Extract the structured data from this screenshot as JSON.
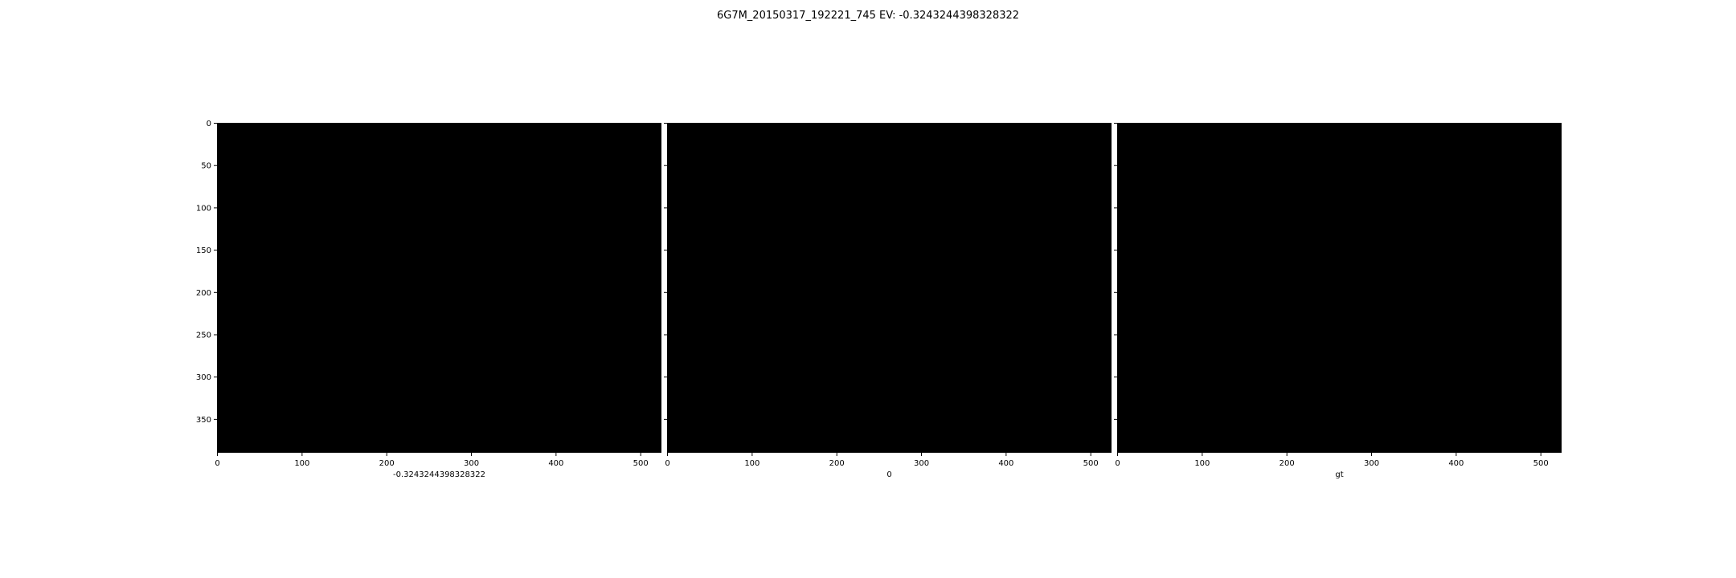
{
  "figure": {
    "title": "6G7M_20150317_192221_745 EV: -0.3243244398328322"
  },
  "chart_data": [
    {
      "type": "heatmap",
      "title": "",
      "xlabel": "-0.3243244398328322",
      "ylabel": "",
      "xlim": [
        -0.5,
        524.5
      ],
      "ylim": [
        389.5,
        -0.5
      ],
      "xticks": [
        0,
        100,
        200,
        300,
        400,
        500
      ],
      "yticks": [
        0,
        50,
        100,
        150,
        200,
        250,
        300,
        350
      ],
      "image_fill": "#000000",
      "grid": false
    },
    {
      "type": "heatmap",
      "title": "",
      "xlabel": "0",
      "ylabel": "",
      "xlim": [
        -0.5,
        524.5
      ],
      "ylim": [
        389.5,
        -0.5
      ],
      "xticks": [
        0,
        100,
        200,
        300,
        400,
        500
      ],
      "yticks": [
        0,
        50,
        100,
        150,
        200,
        250,
        300,
        350
      ],
      "image_fill": "#000000",
      "grid": false
    },
    {
      "type": "heatmap",
      "title": "",
      "xlabel": "gt",
      "ylabel": "",
      "xlim": [
        -0.5,
        524.5
      ],
      "ylim": [
        389.5,
        -0.5
      ],
      "xticks": [
        0,
        100,
        200,
        300,
        400,
        500
      ],
      "yticks": [
        0,
        50,
        100,
        150,
        200,
        250,
        300,
        350
      ],
      "image_fill": "#000000",
      "grid": false
    }
  ]
}
